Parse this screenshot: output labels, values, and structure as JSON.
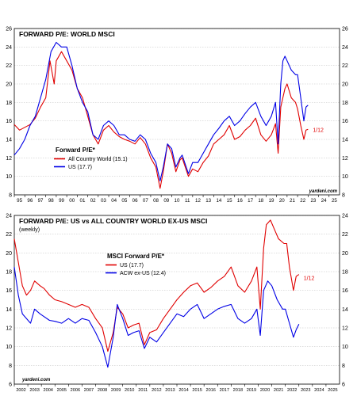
{
  "source_label": "yardeni.com",
  "colors": {
    "red": "#e00000",
    "blue": "#0000e6",
    "grid": "#bfbfbf",
    "frame": "#000000"
  },
  "chart_data": [
    {
      "type": "line",
      "title": "FORWARD P/E: WORLD MSCI",
      "subtitle": "",
      "legend_title": "Forward P/E*",
      "legend_placement": "lower-left",
      "xlim": [
        1995,
        2026
      ],
      "ylim": [
        8,
        26
      ],
      "yticks": [
        8,
        10,
        12,
        14,
        16,
        18,
        20,
        22,
        24,
        26
      ],
      "xtick_labels": [
        "95",
        "96",
        "97",
        "98",
        "99",
        "00",
        "01",
        "02",
        "03",
        "04",
        "05",
        "06",
        "07",
        "08",
        "09",
        "10",
        "11",
        "12",
        "13",
        "14",
        "15",
        "16",
        "17",
        "18",
        "19",
        "20",
        "21",
        "22",
        "23",
        "24",
        "25"
      ],
      "annotation": {
        "text": "1/12",
        "x": 2023.0,
        "y": 15.0,
        "color": "red"
      },
      "series": [
        {
          "name": "All Country World (15.1)",
          "color": "red",
          "points": [
            [
              1995,
              15.6
            ],
            [
              1995.5,
              15.0
            ],
            [
              1996,
              15.3
            ],
            [
              1996.5,
              15.6
            ],
            [
              1997,
              16.3
            ],
            [
              1997.5,
              17.5
            ],
            [
              1998,
              18.5
            ],
            [
              1998.4,
              22.5
            ],
            [
              1998.8,
              20.0
            ],
            [
              1999,
              22.5
            ],
            [
              1999.5,
              23.5
            ],
            [
              2000,
              22.5
            ],
            [
              2000.5,
              21.5
            ],
            [
              2001,
              19.5
            ],
            [
              2001.5,
              18.5
            ],
            [
              2002,
              16.5
            ],
            [
              2002.5,
              14.5
            ],
            [
              2003,
              13.5
            ],
            [
              2003.5,
              15.0
            ],
            [
              2004,
              15.5
            ],
            [
              2004.5,
              14.8
            ],
            [
              2005,
              14.3
            ],
            [
              2005.5,
              14.0
            ],
            [
              2006,
              13.8
            ],
            [
              2006.5,
              13.5
            ],
            [
              2007,
              14.2
            ],
            [
              2007.5,
              13.5
            ],
            [
              2008,
              12.0
            ],
            [
              2008.5,
              11.0
            ],
            [
              2008.9,
              8.7
            ],
            [
              2009.2,
              10.5
            ],
            [
              2009.6,
              13.5
            ],
            [
              2010,
              12.5
            ],
            [
              2010.4,
              10.5
            ],
            [
              2010.8,
              11.8
            ],
            [
              2011,
              12.0
            ],
            [
              2011.6,
              10.0
            ],
            [
              2012,
              10.8
            ],
            [
              2012.5,
              10.5
            ],
            [
              2013,
              11.5
            ],
            [
              2013.5,
              12.2
            ],
            [
              2014,
              13.5
            ],
            [
              2014.5,
              14.0
            ],
            [
              2015,
              14.5
            ],
            [
              2015.5,
              15.5
            ],
            [
              2016,
              14.0
            ],
            [
              2016.5,
              14.3
            ],
            [
              2017,
              15.0
            ],
            [
              2017.5,
              15.5
            ],
            [
              2018,
              16.3
            ],
            [
              2018.5,
              14.5
            ],
            [
              2019,
              13.8
            ],
            [
              2019.5,
              14.5
            ],
            [
              2019.9,
              15.7
            ],
            [
              2020.15,
              12.5
            ],
            [
              2020.4,
              17.5
            ],
            [
              2020.8,
              19.5
            ],
            [
              2021,
              20.0
            ],
            [
              2021.4,
              18.5
            ],
            [
              2021.8,
              18.0
            ],
            [
              2022,
              17.3
            ],
            [
              2022.3,
              15.5
            ],
            [
              2022.6,
              14.0
            ],
            [
              2022.8,
              15.0
            ],
            [
              2023.0,
              15.1
            ]
          ]
        },
        {
          "name": "US (17.7)",
          "color": "blue",
          "points": [
            [
              1995,
              12.3
            ],
            [
              1995.5,
              13.0
            ],
            [
              1996,
              14.0
            ],
            [
              1996.5,
              15.5
            ],
            [
              1997,
              16.5
            ],
            [
              1997.5,
              18.5
            ],
            [
              1998,
              20.5
            ],
            [
              1998.5,
              23.5
            ],
            [
              1999,
              24.5
            ],
            [
              1999.5,
              24.0
            ],
            [
              2000,
              24.0
            ],
            [
              2000.5,
              22.0
            ],
            [
              2001,
              19.5
            ],
            [
              2001.5,
              18.0
            ],
            [
              2002,
              17.0
            ],
            [
              2002.5,
              14.5
            ],
            [
              2003,
              14.0
            ],
            [
              2003.5,
              15.5
            ],
            [
              2004,
              16.0
            ],
            [
              2004.5,
              15.5
            ],
            [
              2005,
              14.5
            ],
            [
              2005.5,
              14.5
            ],
            [
              2006,
              14.0
            ],
            [
              2006.5,
              13.8
            ],
            [
              2007,
              14.5
            ],
            [
              2007.5,
              14.0
            ],
            [
              2008,
              12.5
            ],
            [
              2008.5,
              11.5
            ],
            [
              2008.9,
              9.5
            ],
            [
              2009.2,
              11.0
            ],
            [
              2009.6,
              13.5
            ],
            [
              2010,
              13.0
            ],
            [
              2010.4,
              11.0
            ],
            [
              2010.8,
              12.0
            ],
            [
              2011,
              12.3
            ],
            [
              2011.6,
              10.3
            ],
            [
              2012,
              11.5
            ],
            [
              2012.5,
              11.5
            ],
            [
              2013,
              12.5
            ],
            [
              2013.5,
              13.5
            ],
            [
              2014,
              14.5
            ],
            [
              2014.5,
              15.2
            ],
            [
              2015,
              16.0
            ],
            [
              2015.5,
              16.5
            ],
            [
              2016,
              15.5
            ],
            [
              2016.5,
              16.0
            ],
            [
              2017,
              16.8
            ],
            [
              2017.5,
              17.5
            ],
            [
              2018,
              18.0
            ],
            [
              2018.5,
              16.5
            ],
            [
              2019,
              15.5
            ],
            [
              2019.5,
              16.5
            ],
            [
              2019.9,
              18.0
            ],
            [
              2020.15,
              13.5
            ],
            [
              2020.4,
              20.0
            ],
            [
              2020.6,
              22.5
            ],
            [
              2020.8,
              23.0
            ],
            [
              2021,
              22.5
            ],
            [
              2021.4,
              21.5
            ],
            [
              2021.8,
              21.0
            ],
            [
              2022,
              21.0
            ],
            [
              2022.3,
              18.5
            ],
            [
              2022.6,
              16.0
            ],
            [
              2022.8,
              17.5
            ],
            [
              2023.0,
              17.7
            ]
          ]
        }
      ]
    },
    {
      "type": "line",
      "title": "FORWARD P/E: US vs ALL COUNTRY WORLD EX-US MSCI",
      "subtitle": "(weekly)",
      "legend_title": "MSCI Forward P/E*",
      "legend_placement": "center",
      "xlim": [
        2002,
        2026
      ],
      "ylim": [
        6,
        24
      ],
      "yticks": [
        6,
        8,
        10,
        12,
        14,
        16,
        18,
        20,
        22,
        24
      ],
      "xtick_labels": [
        "2002",
        "2003",
        "2004",
        "2005",
        "2006",
        "2007",
        "2008",
        "2009",
        "2010",
        "2011",
        "2012",
        "2013",
        "2014",
        "2015",
        "2016",
        "2017",
        "2018",
        "2019",
        "2020",
        "2021",
        "2022",
        "2023",
        "2024",
        "2025"
      ],
      "annotation": {
        "text": "1/12",
        "x": 2023.0,
        "y": 17.3,
        "color": "red"
      },
      "series": [
        {
          "name": "US (17.7)",
          "color": "red",
          "points": [
            [
              2002,
              21.5
            ],
            [
              2002.3,
              19.0
            ],
            [
              2002.6,
              16.5
            ],
            [
              2002.9,
              15.5
            ],
            [
              2003.2,
              16.0
            ],
            [
              2003.5,
              17.0
            ],
            [
              2003.9,
              16.5
            ],
            [
              2004.2,
              16.2
            ],
            [
              2004.6,
              15.5
            ],
            [
              2005,
              15.0
            ],
            [
              2005.5,
              14.8
            ],
            [
              2006,
              14.5
            ],
            [
              2006.5,
              14.2
            ],
            [
              2007,
              14.5
            ],
            [
              2007.5,
              14.2
            ],
            [
              2008,
              13.0
            ],
            [
              2008.5,
              12.0
            ],
            [
              2008.9,
              9.5
            ],
            [
              2009.3,
              11.5
            ],
            [
              2009.6,
              14.2
            ],
            [
              2010,
              13.5
            ],
            [
              2010.4,
              12.0
            ],
            [
              2010.8,
              12.3
            ],
            [
              2011.2,
              12.5
            ],
            [
              2011.6,
              10.2
            ],
            [
              2012,
              11.5
            ],
            [
              2012.5,
              11.8
            ],
            [
              2013,
              13.0
            ],
            [
              2013.5,
              14.0
            ],
            [
              2014,
              15.0
            ],
            [
              2014.5,
              15.8
            ],
            [
              2015,
              16.5
            ],
            [
              2015.5,
              16.8
            ],
            [
              2016,
              15.8
            ],
            [
              2016.5,
              16.3
            ],
            [
              2017,
              17.0
            ],
            [
              2017.5,
              17.5
            ],
            [
              2018,
              18.5
            ],
            [
              2018.5,
              16.5
            ],
            [
              2019,
              15.8
            ],
            [
              2019.5,
              17.0
            ],
            [
              2019.9,
              18.5
            ],
            [
              2020.15,
              14.0
            ],
            [
              2020.4,
              20.5
            ],
            [
              2020.6,
              23.0
            ],
            [
              2020.9,
              23.5
            ],
            [
              2021.2,
              22.5
            ],
            [
              2021.5,
              21.5
            ],
            [
              2021.9,
              21.0
            ],
            [
              2022.1,
              21.0
            ],
            [
              2022.3,
              18.5
            ],
            [
              2022.6,
              16.0
            ],
            [
              2022.8,
              17.5
            ],
            [
              2023.0,
              17.7
            ]
          ]
        },
        {
          "name": "ACW ex-US (12.4)",
          "color": "blue",
          "points": [
            [
              2002,
              18.5
            ],
            [
              2002.3,
              15.5
            ],
            [
              2002.6,
              13.5
            ],
            [
              2002.9,
              13.0
            ],
            [
              2003.2,
              12.5
            ],
            [
              2003.5,
              14.0
            ],
            [
              2003.9,
              13.5
            ],
            [
              2004.2,
              13.2
            ],
            [
              2004.6,
              12.8
            ],
            [
              2005,
              12.7
            ],
            [
              2005.5,
              12.5
            ],
            [
              2006,
              13.0
            ],
            [
              2006.5,
              12.5
            ],
            [
              2007,
              13.0
            ],
            [
              2007.5,
              12.8
            ],
            [
              2008,
              11.5
            ],
            [
              2008.5,
              10.0
            ],
            [
              2008.9,
              7.8
            ],
            [
              2009.3,
              11.0
            ],
            [
              2009.6,
              14.5
            ],
            [
              2010,
              13.0
            ],
            [
              2010.4,
              11.2
            ],
            [
              2010.8,
              11.5
            ],
            [
              2011.2,
              11.7
            ],
            [
              2011.6,
              9.8
            ],
            [
              2012,
              11.0
            ],
            [
              2012.5,
              10.5
            ],
            [
              2013,
              11.5
            ],
            [
              2013.5,
              12.5
            ],
            [
              2014,
              13.5
            ],
            [
              2014.5,
              13.2
            ],
            [
              2015,
              14.0
            ],
            [
              2015.5,
              14.5
            ],
            [
              2016,
              13.0
            ],
            [
              2016.5,
              13.5
            ],
            [
              2017,
              14.0
            ],
            [
              2017.5,
              14.3
            ],
            [
              2018,
              14.5
            ],
            [
              2018.5,
              13.0
            ],
            [
              2019,
              12.5
            ],
            [
              2019.5,
              13.0
            ],
            [
              2019.9,
              14.0
            ],
            [
              2020.15,
              11.2
            ],
            [
              2020.4,
              16.0
            ],
            [
              2020.7,
              17.0
            ],
            [
              2021,
              16.5
            ],
            [
              2021.4,
              15.0
            ],
            [
              2021.8,
              14.0
            ],
            [
              2022,
              14.0
            ],
            [
              2022.3,
              12.5
            ],
            [
              2022.6,
              11.0
            ],
            [
              2022.8,
              11.8
            ],
            [
              2023.0,
              12.4
            ]
          ]
        }
      ]
    }
  ]
}
